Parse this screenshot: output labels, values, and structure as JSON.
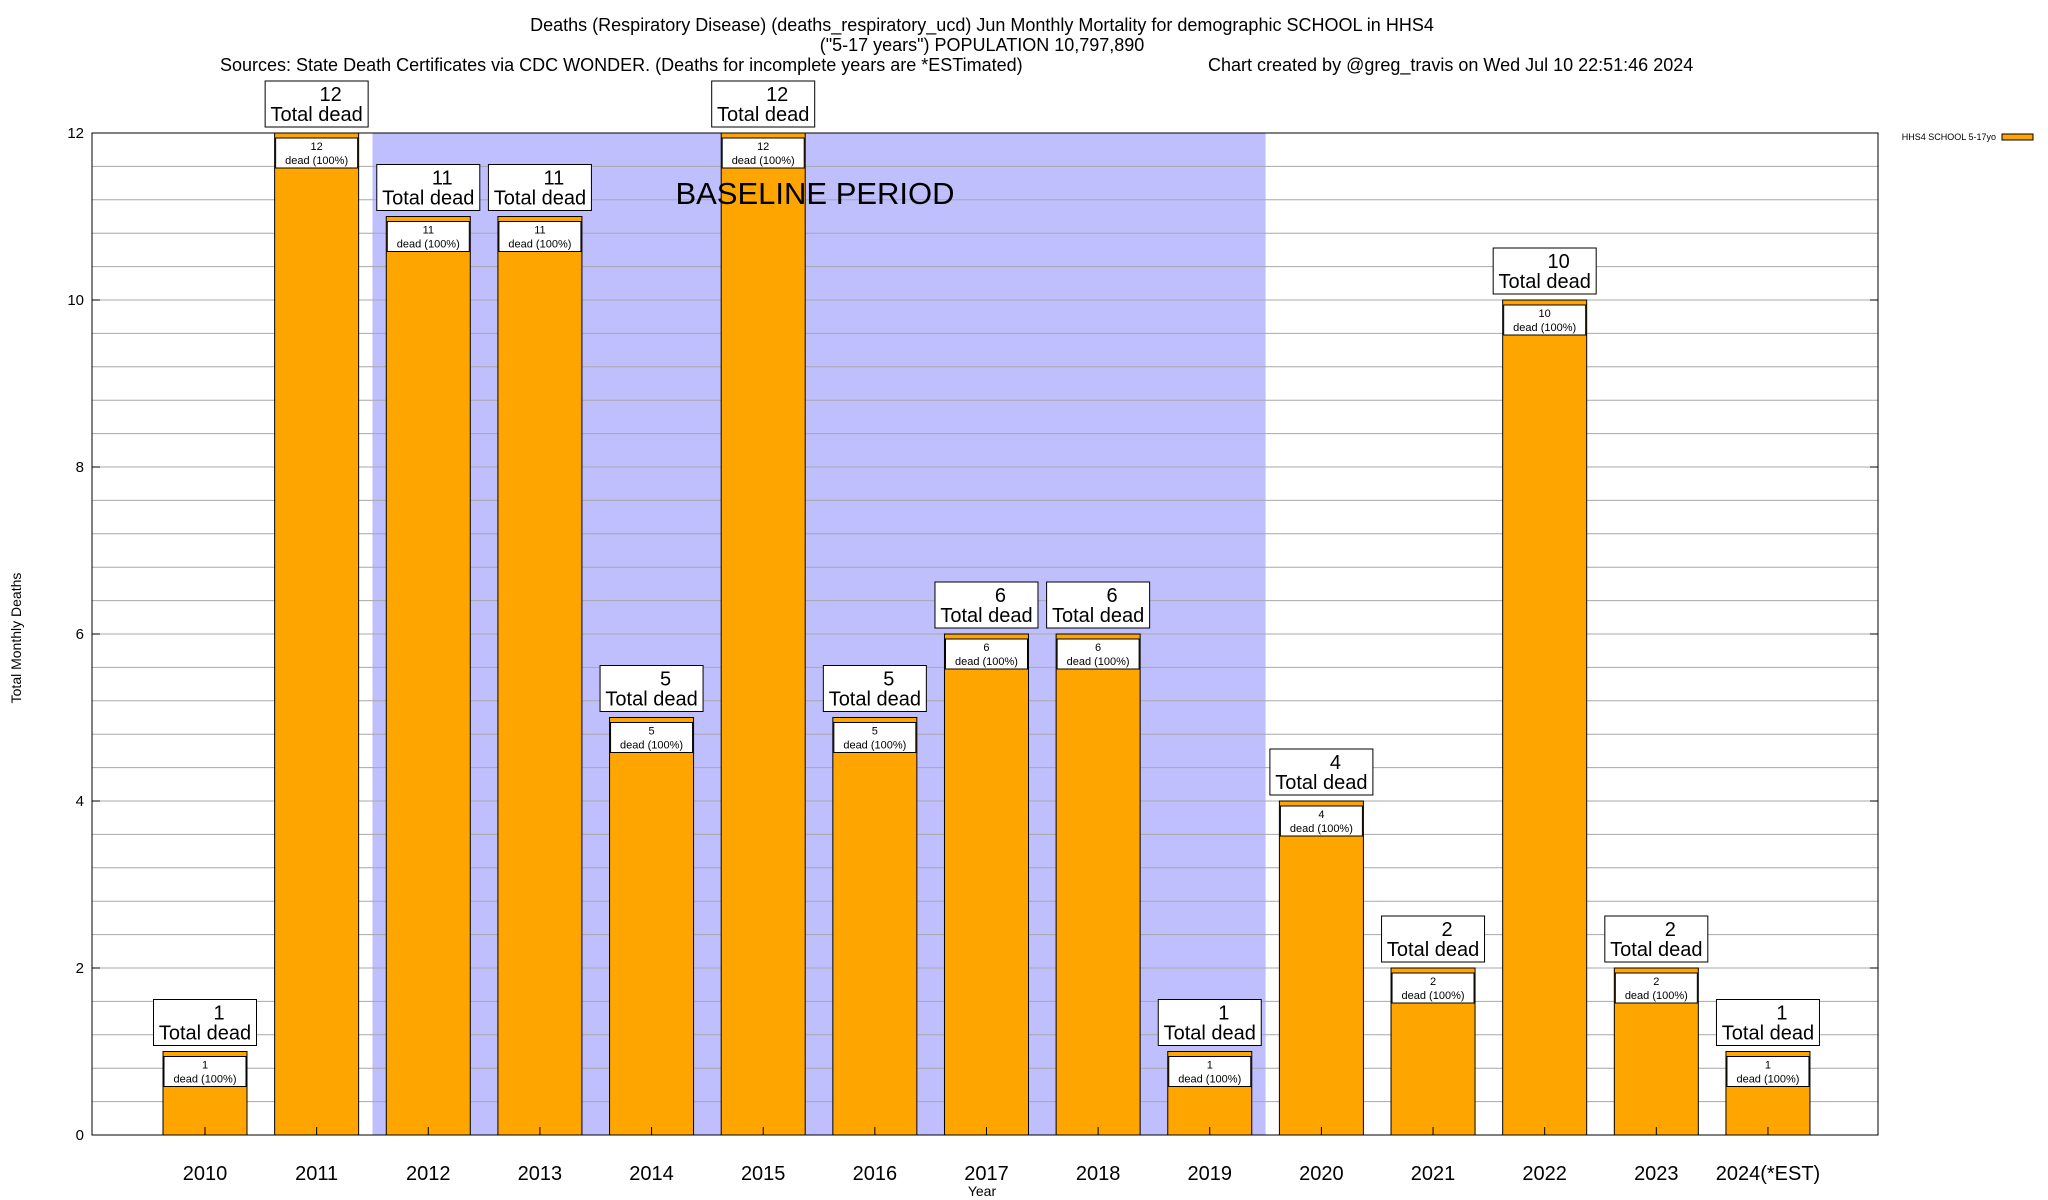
{
  "chart_data": {
    "type": "bar",
    "title_lines": [
      "Deaths (Respiratory Disease) (deaths_respiratory_ucd) Jun Monthly Mortality for demographic SCHOOL in HHS4",
      "(\"5-17 years\") POPULATION 10,797,890"
    ],
    "sources": "Sources: State Death Certificates via CDC WONDER. (Deaths for incomplete years are *ESTimated)",
    "credit": "Chart created by @greg_travis on Wed Jul 10 22:51:46 2024",
    "xlabel": "Year",
    "ylabel": "Total Monthly Deaths",
    "ylim": [
      0,
      12
    ],
    "yticks": [
      "0",
      "2",
      "4",
      "6",
      "8",
      "10",
      "12"
    ],
    "grid": true,
    "legend": {
      "position": "top-right",
      "label": "HHS4 SCHOOL 5-17yo"
    },
    "baseline": {
      "label": "BASELINE PERIOD",
      "from": "2012",
      "to": "2019",
      "color": "#bfbffe"
    },
    "colors": {
      "bar": "#ffa500",
      "baseline": "#bfbffe"
    },
    "total_label": "Total dead",
    "inner_label": "dead (100%)",
    "categories": [
      "2010",
      "2011",
      "2012",
      "2013",
      "2014",
      "2015",
      "2016",
      "2017",
      "2018",
      "2019",
      "2020",
      "2021",
      "2022",
      "2023",
      "2024(*EST)"
    ],
    "series": [
      {
        "name": "HHS4 SCHOOL 5-17yo",
        "values": [
          1,
          12,
          11,
          11,
          5,
          12,
          5,
          6,
          6,
          1,
          4,
          2,
          10,
          2,
          1
        ]
      }
    ]
  }
}
